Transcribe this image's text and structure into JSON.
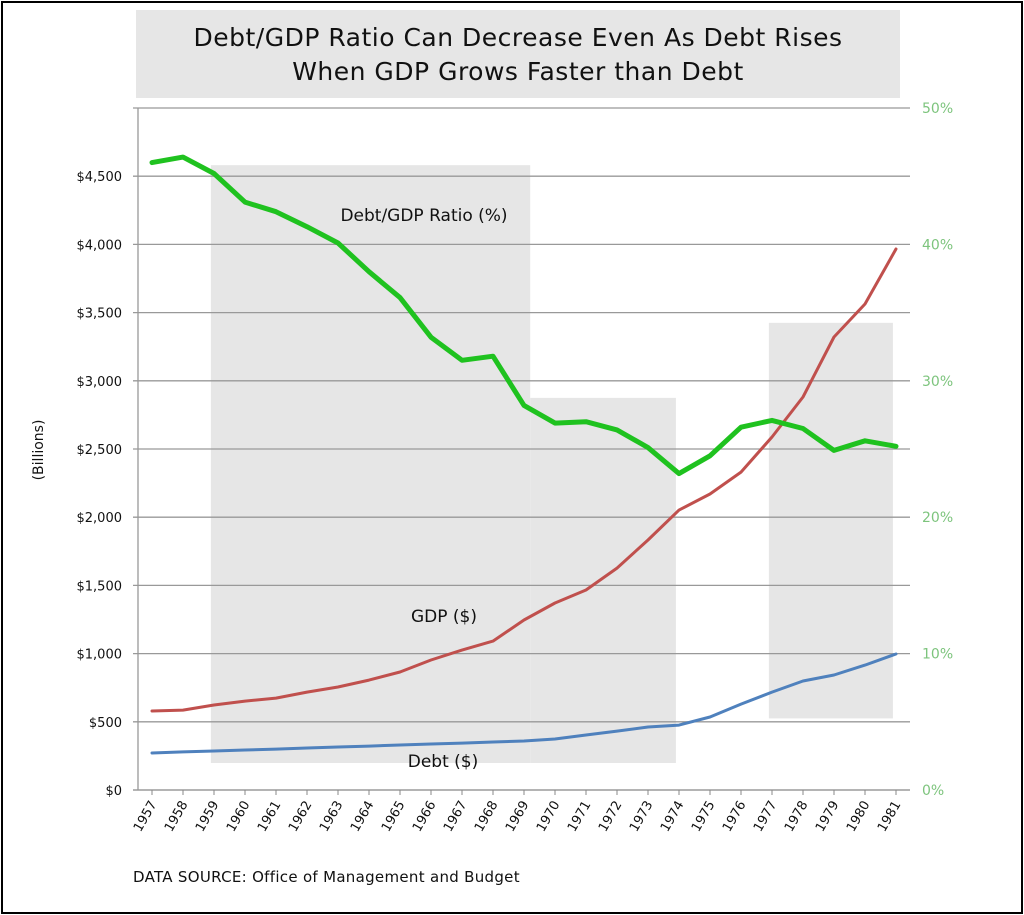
{
  "chart_data": {
    "type": "line",
    "title": [
      "Debt/GDP Ratio Can Decrease Even As Debt Rises",
      "When GDP Grows Faster than Debt"
    ],
    "source": "DATA SOURCE: Office of Management and Budget",
    "ylabel": "(Billions)",
    "ylim": [
      0,
      5000
    ],
    "y2lim": [
      0,
      50
    ],
    "yticks": [
      "$0",
      "$500",
      "$1,000",
      "$1,500",
      "$2,000",
      "$2,500",
      "$3,000",
      "$3,500",
      "$4,000",
      "$4,500"
    ],
    "y2ticks": [
      "0%",
      "10%",
      "20%",
      "30%",
      "40%",
      "50%"
    ],
    "x": [
      1957,
      1958,
      1959,
      1960,
      1961,
      1962,
      1963,
      1964,
      1965,
      1966,
      1967,
      1968,
      1969,
      1970,
      1971,
      1972,
      1973,
      1974,
      1975,
      1976,
      1977,
      1978,
      1979,
      1980,
      1981
    ],
    "grid": true,
    "series": [
      {
        "name": "GDP ($)",
        "axis": "left",
        "color": "#c0504d",
        "values": [
          579,
          586,
          623,
          652,
          674,
          718,
          755,
          806,
          865,
          953,
          1026,
          1092,
          1246,
          1371,
          1466,
          1627,
          1833,
          2052,
          2170,
          2331,
          2588,
          2881,
          3321,
          3563,
          3966
        ]
      },
      {
        "name": "Debt ($)",
        "axis": "left",
        "color": "#4f81bd",
        "values": [
          271,
          279,
          286,
          293,
          300,
          308,
          315,
          322,
          330,
          337,
          344,
          352,
          359,
          374,
          403,
          432,
          462,
          476,
          535,
          630,
          718,
          799,
          843,
          916,
          997
        ]
      },
      {
        "name": "Debt/GDP Ratio (%)",
        "axis": "right",
        "color": "#1fc21f",
        "values": [
          46.0,
          46.4,
          45.2,
          43.1,
          42.4,
          41.3,
          40.1,
          38.0,
          36.1,
          33.2,
          31.5,
          31.8,
          28.2,
          26.9,
          27.0,
          26.4,
          25.1,
          23.2,
          24.5,
          26.6,
          27.1,
          26.5,
          24.9,
          25.6,
          25.2
        ]
      }
    ],
    "shaded_regions": [
      {
        "x": [
          1958.9,
          1969.2
        ],
        "y": [
          198,
          4581
        ]
      },
      {
        "x": [
          1969.2,
          1973.9
        ],
        "y": [
          198,
          2875
        ]
      },
      {
        "x": [
          1976.9,
          1980.9
        ],
        "y": [
          525,
          3425
        ]
      }
    ],
    "colors": {
      "right_axis": "#7dc47d",
      "shade": "#e6e6e6",
      "grid": "#999999"
    }
  }
}
